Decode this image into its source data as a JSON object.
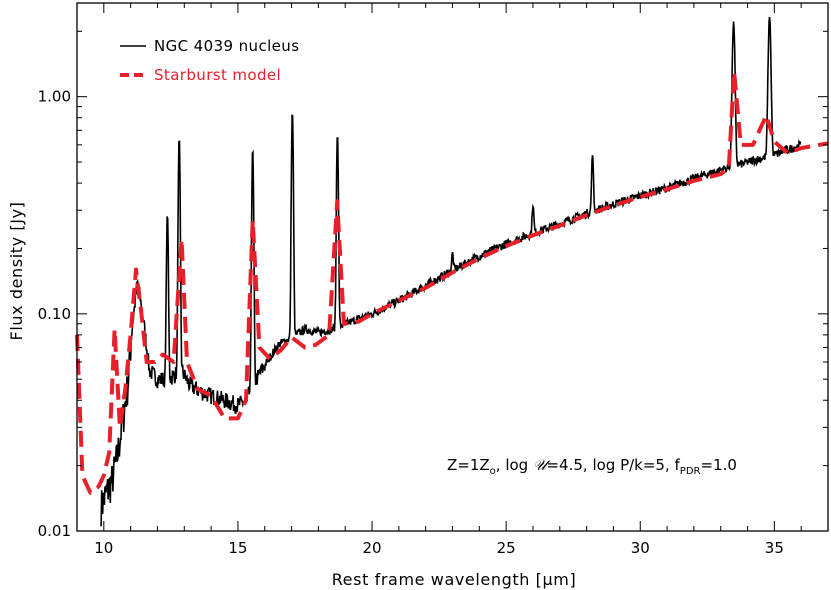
{
  "chart_data": {
    "type": "line",
    "title": "",
    "xlabel": "Rest frame wavelength [μm]",
    "ylabel": "Flux density [Jy]",
    "xlim": [
      9.0,
      37.0
    ],
    "ylim": [
      0.01,
      2.7
    ],
    "yscale": "log",
    "x_ticks": [
      10,
      15,
      20,
      25,
      30,
      35
    ],
    "x_tick_labels": [
      "10",
      "15",
      "20",
      "25",
      "30",
      "35"
    ],
    "y_ticks": [
      0.01,
      0.1,
      1.0
    ],
    "y_tick_labels": [
      "0.01",
      "0.10",
      "1.00"
    ],
    "annotation": {
      "prefix": "Z=1Z",
      "z_sub": "o",
      "middle": ", log ",
      "u_symbol": "𝒰",
      "after_u": "=4.5, log P/k=5, f",
      "f_sub": "PDR",
      "suffix": "=1.0"
    },
    "legend": {
      "placement": "top-left"
    },
    "series": [
      {
        "name": "NGC 4039 nucleus",
        "style": "solid",
        "color": "#000000",
        "continuum": [
          [
            9.9,
            0.013
          ],
          [
            10.1,
            0.015
          ],
          [
            10.3,
            0.017
          ],
          [
            10.5,
            0.022
          ],
          [
            10.7,
            0.032
          ],
          [
            10.9,
            0.048
          ],
          [
            11.05,
            0.085
          ],
          [
            11.25,
            0.14
          ],
          [
            11.45,
            0.1
          ],
          [
            11.7,
            0.055
          ],
          [
            12.0,
            0.05
          ],
          [
            12.4,
            0.05
          ],
          [
            12.9,
            0.055
          ],
          [
            13.2,
            0.047
          ],
          [
            13.6,
            0.044
          ],
          [
            14.0,
            0.042
          ],
          [
            14.5,
            0.04
          ],
          [
            15.0,
            0.038
          ],
          [
            15.3,
            0.04
          ],
          [
            15.6,
            0.048
          ],
          [
            16.0,
            0.058
          ],
          [
            16.5,
            0.072
          ],
          [
            17.0,
            0.078
          ],
          [
            17.5,
            0.085
          ],
          [
            18.0,
            0.082
          ],
          [
            18.5,
            0.085
          ],
          [
            19.0,
            0.09
          ],
          [
            20.0,
            0.1
          ],
          [
            21.0,
            0.115
          ],
          [
            22.0,
            0.135
          ],
          [
            23.0,
            0.158
          ],
          [
            24.0,
            0.185
          ],
          [
            25.0,
            0.21
          ],
          [
            26.0,
            0.235
          ],
          [
            27.0,
            0.26
          ],
          [
            28.0,
            0.29
          ],
          [
            29.0,
            0.32
          ],
          [
            30.0,
            0.35
          ],
          [
            31.0,
            0.38
          ],
          [
            32.0,
            0.42
          ],
          [
            33.0,
            0.46
          ],
          [
            34.0,
            0.5
          ],
          [
            35.0,
            0.54
          ],
          [
            35.5,
            0.57
          ],
          [
            36.0,
            0.6
          ]
        ],
        "lines": [
          {
            "wavelength_um": 12.37,
            "peak_jy": 0.29
          },
          {
            "wavelength_um": 12.81,
            "peak_jy": 0.65
          },
          {
            "wavelength_um": 15.55,
            "peak_jy": 0.58
          },
          {
            "wavelength_um": 17.03,
            "peak_jy": 0.86
          },
          {
            "wavelength_um": 18.71,
            "peak_jy": 0.68
          },
          {
            "wavelength_um": 23.0,
            "peak_jy": 0.19
          },
          {
            "wavelength_um": 26.0,
            "peak_jy": 0.32
          },
          {
            "wavelength_um": 28.22,
            "peak_jy": 0.55
          },
          {
            "wavelength_um": 33.48,
            "peak_jy": 2.2
          },
          {
            "wavelength_um": 34.82,
            "peak_jy": 2.35
          }
        ]
      },
      {
        "name": "Starburst model",
        "style": "dashed",
        "color": "#e8202a",
        "points": [
          [
            9.0,
            0.08
          ],
          [
            9.2,
            0.018
          ],
          [
            9.5,
            0.015
          ],
          [
            9.8,
            0.016
          ],
          [
            10.0,
            0.018
          ],
          [
            10.2,
            0.023
          ],
          [
            10.4,
            0.085
          ],
          [
            10.6,
            0.03
          ],
          [
            10.8,
            0.045
          ],
          [
            11.0,
            0.08
          ],
          [
            11.2,
            0.16
          ],
          [
            11.4,
            0.1
          ],
          [
            11.6,
            0.06
          ],
          [
            11.9,
            0.06
          ],
          [
            12.2,
            0.065
          ],
          [
            12.6,
            0.06
          ],
          [
            12.9,
            0.22
          ],
          [
            13.1,
            0.06
          ],
          [
            13.5,
            0.045
          ],
          [
            14.0,
            0.042
          ],
          [
            14.5,
            0.033
          ],
          [
            15.0,
            0.033
          ],
          [
            15.3,
            0.04
          ],
          [
            15.55,
            0.27
          ],
          [
            15.8,
            0.07
          ],
          [
            16.2,
            0.062
          ],
          [
            16.6,
            0.068
          ],
          [
            17.0,
            0.078
          ],
          [
            17.5,
            0.07
          ],
          [
            17.9,
            0.072
          ],
          [
            18.4,
            0.08
          ],
          [
            18.7,
            0.33
          ],
          [
            18.95,
            0.09
          ],
          [
            19.5,
            0.092
          ],
          [
            20.0,
            0.1
          ],
          [
            21.0,
            0.115
          ],
          [
            22.0,
            0.132
          ],
          [
            23.0,
            0.155
          ],
          [
            24.0,
            0.18
          ],
          [
            25.0,
            0.205
          ],
          [
            26.0,
            0.23
          ],
          [
            27.0,
            0.255
          ],
          [
            28.0,
            0.285
          ],
          [
            29.0,
            0.315
          ],
          [
            30.0,
            0.345
          ],
          [
            31.0,
            0.375
          ],
          [
            32.0,
            0.41
          ],
          [
            33.0,
            0.44
          ],
          [
            33.3,
            0.47
          ],
          [
            33.5,
            1.3
          ],
          [
            33.75,
            0.6
          ],
          [
            34.2,
            0.6
          ],
          [
            34.7,
            0.82
          ],
          [
            35.0,
            0.62
          ],
          [
            35.5,
            0.55
          ],
          [
            36.0,
            0.58
          ],
          [
            37.0,
            0.61
          ]
        ]
      }
    ]
  }
}
